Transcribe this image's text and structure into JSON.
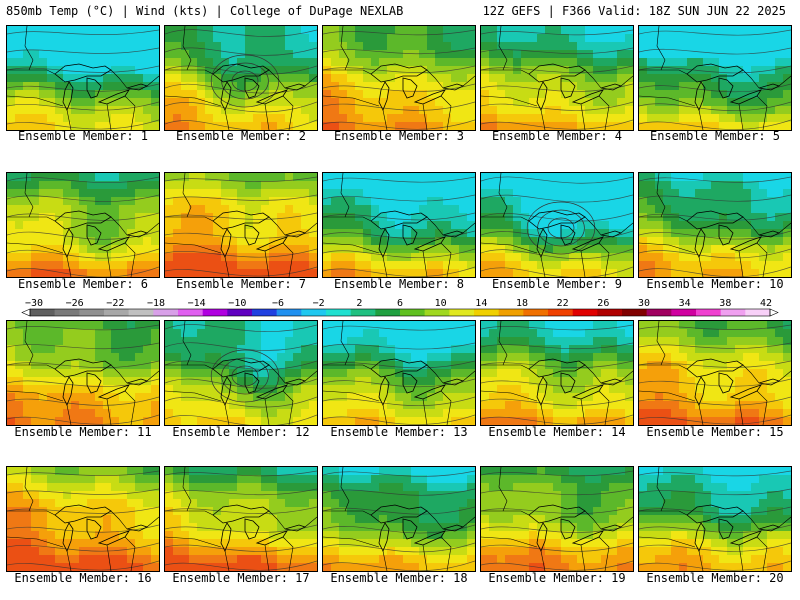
{
  "header": {
    "title_left": "850mb Temp (°C) | Wind (kts) | College of DuPage NEXLAB",
    "title_right": "12Z GEFS | F366 Valid: 18Z SUN JUN 22 2025"
  },
  "members": [
    {
      "label": "Ensemble Member: 1",
      "warmth": 0.35,
      "cold_north": 0.9,
      "trough": 0.2
    },
    {
      "label": "Ensemble Member: 2",
      "warmth": 0.55,
      "cold_north": 0.5,
      "trough": 0.9
    },
    {
      "label": "Ensemble Member: 3",
      "warmth": 0.65,
      "cold_north": 0.3,
      "trough": 0.3
    },
    {
      "label": "Ensemble Member: 4",
      "warmth": 0.55,
      "cold_north": 0.5,
      "trough": 0.3
    },
    {
      "label": "Ensemble Member: 5",
      "warmth": 0.35,
      "cold_north": 0.85,
      "trough": 0.4
    },
    {
      "label": "Ensemble Member: 6",
      "warmth": 0.6,
      "cold_north": 0.3,
      "trough": 0.6
    },
    {
      "label": "Ensemble Member: 7",
      "warmth": 0.8,
      "cold_north": 0.2,
      "trough": 0.2
    },
    {
      "label": "Ensemble Member: 8",
      "warmth": 0.4,
      "cold_north": 0.9,
      "trough": 0.4
    },
    {
      "label": "Ensemble Member: 9",
      "warmth": 0.35,
      "cold_north": 0.8,
      "trough": 0.8
    },
    {
      "label": "Ensemble Member: 10",
      "warmth": 0.5,
      "cold_north": 0.6,
      "trough": 0.5
    },
    {
      "label": "Ensemble Member: 11",
      "warmth": 0.65,
      "cold_north": 0.3,
      "trough": 0.3
    },
    {
      "label": "Ensemble Member: 12",
      "warmth": 0.4,
      "cold_north": 0.4,
      "trough": 0.95
    },
    {
      "label": "Ensemble Member: 13",
      "warmth": 0.45,
      "cold_north": 0.7,
      "trough": 0.4
    },
    {
      "label": "Ensemble Member: 14",
      "warmth": 0.6,
      "cold_north": 0.6,
      "trough": 0.3
    },
    {
      "label": "Ensemble Member: 15",
      "warmth": 0.7,
      "cold_north": 0.2,
      "trough": 0.2
    },
    {
      "label": "Ensemble Member: 16",
      "warmth": 0.85,
      "cold_north": 0.2,
      "trough": 0.2
    },
    {
      "label": "Ensemble Member: 17",
      "warmth": 0.75,
      "cold_north": 0.5,
      "trough": 0.3
    },
    {
      "label": "Ensemble Member: 18",
      "warmth": 0.45,
      "cold_north": 0.5,
      "trough": 0.5
    },
    {
      "label": "Ensemble Member: 19",
      "warmth": 0.6,
      "cold_north": 0.35,
      "trough": 0.3
    },
    {
      "label": "Ensemble Member: 20",
      "warmth": 0.5,
      "cold_north": 0.7,
      "trough": 0.3
    }
  ],
  "colorbar": {
    "labels": [
      "-30",
      "-26",
      "-22",
      "-18",
      "-14",
      "-10",
      "-6",
      "-2",
      "2",
      "6",
      "10",
      "14",
      "18",
      "22",
      "26",
      "30",
      "34",
      "38",
      "42"
    ],
    "colors": [
      "#606060",
      "#7a7a7a",
      "#909090",
      "#a8a8a8",
      "#c0c0c0",
      "#d8a0e8",
      "#e060f0",
      "#b000e0",
      "#6000c0",
      "#2040e0",
      "#2090f0",
      "#20c8f0",
      "#20e0d0",
      "#20c080",
      "#20a040",
      "#60c020",
      "#a0d820",
      "#e0e820",
      "#f0d000",
      "#f0a000",
      "#f07000",
      "#f04000",
      "#e00000",
      "#b00000",
      "#800000",
      "#a00060",
      "#d000a0",
      "#f040d0",
      "#f0a0f0",
      "#f8d0f8"
    ]
  }
}
